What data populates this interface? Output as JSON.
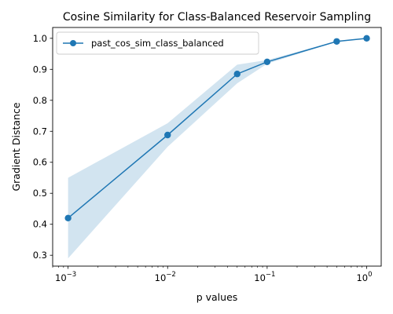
{
  "chart_data": {
    "type": "line",
    "title": "Cosine Similarity for Class-Balanced Reservoir Sampling",
    "xlabel": "p values",
    "ylabel": "Gradient Distance",
    "xscale": "log",
    "xlim": [
      0.0007,
      1.4
    ],
    "ylim": [
      0.265,
      1.035
    ],
    "xticks": [
      {
        "value": 0.001,
        "base": "10",
        "exp": "−3"
      },
      {
        "value": 0.01,
        "base": "10",
        "exp": "−2"
      },
      {
        "value": 0.1,
        "base": "10",
        "exp": "−1"
      },
      {
        "value": 1,
        "base": "10",
        "exp": "0"
      }
    ],
    "yticks": [
      "0.3",
      "0.4",
      "0.5",
      "0.6",
      "0.7",
      "0.8",
      "0.9",
      "1.0"
    ],
    "grid": false,
    "legend_position": "top-left",
    "series": [
      {
        "name": "past_cos_sim_class_balanced",
        "color": "#1f77b4",
        "band_color": "#1f77b4",
        "x": [
          0.001,
          0.01,
          0.05,
          0.1,
          0.5,
          1
        ],
        "y": [
          0.42,
          0.688,
          0.885,
          0.924,
          0.99,
          1.0
        ],
        "lower": [
          0.29,
          0.65,
          0.855,
          0.918,
          0.989,
          1.0
        ],
        "upper": [
          0.55,
          0.726,
          0.915,
          0.93,
          0.991,
          1.0
        ]
      }
    ]
  }
}
